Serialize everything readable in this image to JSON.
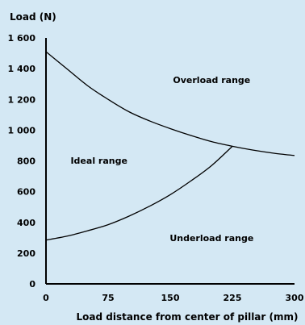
{
  "chart_data": {
    "type": "line",
    "ylabel": "Load (N)",
    "xlabel": "Load distance from center of pillar (mm)",
    "xlim": [
      0,
      300
    ],
    "ylim": [
      0,
      1600
    ],
    "x_ticks": [
      "0",
      "75",
      "150",
      "225",
      "300"
    ],
    "y_ticks": [
      "0",
      "200",
      "400",
      "600",
      "800",
      "1 000",
      "1 200",
      "1 400",
      "1 600"
    ],
    "grid": false,
    "series": [
      {
        "x": [
          0,
          25,
          50,
          75,
          100,
          125,
          150,
          175,
          200,
          225,
          250,
          275,
          300
        ],
        "values": [
          1510,
          1400,
          1290,
          1200,
          1120,
          1060,
          1010,
          965,
          925,
          895,
          870,
          850,
          835
        ],
        "color": "#000000"
      },
      {
        "x": [
          0,
          25,
          50,
          75,
          100,
          125,
          150,
          175,
          200,
          225
        ],
        "values": [
          285,
          310,
          345,
          385,
          440,
          505,
          580,
          670,
          770,
          895
        ],
        "color": "#000000"
      }
    ],
    "regions": [
      {
        "label": "Overload range",
        "x": 200,
        "y": 1305
      },
      {
        "label": "Ideal range",
        "x": 64,
        "y": 782
      },
      {
        "label": "Underload range",
        "x": 200,
        "y": 278
      }
    ]
  },
  "colors": {
    "background": "#d4e8f4",
    "ink": "#000000"
  }
}
